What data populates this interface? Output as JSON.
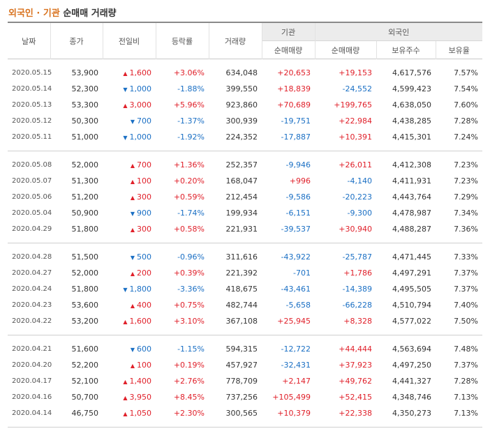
{
  "title": {
    "part1": "외국인",
    "sep": " · ",
    "part2": "기관",
    "rest": " 순매매 거래량"
  },
  "headers": {
    "date": "날짜",
    "close": "종가",
    "change": "전일비",
    "rate": "등락률",
    "volume": "거래량",
    "inst": "기관",
    "foreign": "외국인",
    "inst_net": "순매매량",
    "foreign_net": "순매매량",
    "holdings": "보유주수",
    "ratio": "보유율"
  },
  "rows": [
    {
      "date": "2020.05.15",
      "close": "53,900",
      "dir": "up",
      "change": "1,600",
      "rate": "+3.06%",
      "volume": "634,048",
      "inst": "+20,653",
      "foreign": "+19,153",
      "hold": "4,617,576",
      "ratio": "7.57%"
    },
    {
      "date": "2020.05.14",
      "close": "52,300",
      "dir": "down",
      "change": "1,000",
      "rate": "-1.88%",
      "volume": "399,550",
      "inst": "+18,839",
      "foreign": "-24,552",
      "hold": "4,599,423",
      "ratio": "7.54%"
    },
    {
      "date": "2020.05.13",
      "close": "53,300",
      "dir": "up",
      "change": "3,000",
      "rate": "+5.96%",
      "volume": "923,860",
      "inst": "+70,689",
      "foreign": "+199,765",
      "hold": "4,638,050",
      "ratio": "7.60%"
    },
    {
      "date": "2020.05.12",
      "close": "50,300",
      "dir": "down",
      "change": "700",
      "rate": "-1.37%",
      "volume": "300,939",
      "inst": "-19,751",
      "foreign": "+22,984",
      "hold": "4,438,285",
      "ratio": "7.28%"
    },
    {
      "date": "2020.05.11",
      "close": "51,000",
      "dir": "down",
      "change": "1,000",
      "rate": "-1.92%",
      "volume": "224,352",
      "inst": "-17,887",
      "foreign": "+10,391",
      "hold": "4,415,301",
      "ratio": "7.24%"
    },
    {
      "date": "2020.05.08",
      "close": "52,000",
      "dir": "up",
      "change": "700",
      "rate": "+1.36%",
      "volume": "252,357",
      "inst": "-9,946",
      "foreign": "+26,011",
      "hold": "4,412,308",
      "ratio": "7.23%"
    },
    {
      "date": "2020.05.07",
      "close": "51,300",
      "dir": "up",
      "change": "100",
      "rate": "+0.20%",
      "volume": "168,047",
      "inst": "+996",
      "foreign": "-4,140",
      "hold": "4,411,931",
      "ratio": "7.23%"
    },
    {
      "date": "2020.05.06",
      "close": "51,200",
      "dir": "up",
      "change": "300",
      "rate": "+0.59%",
      "volume": "212,454",
      "inst": "-9,586",
      "foreign": "-20,223",
      "hold": "4,443,764",
      "ratio": "7.29%"
    },
    {
      "date": "2020.05.04",
      "close": "50,900",
      "dir": "down",
      "change": "900",
      "rate": "-1.74%",
      "volume": "199,934",
      "inst": "-6,151",
      "foreign": "-9,300",
      "hold": "4,478,987",
      "ratio": "7.34%"
    },
    {
      "date": "2020.04.29",
      "close": "51,800",
      "dir": "up",
      "change": "300",
      "rate": "+0.58%",
      "volume": "221,931",
      "inst": "-39,537",
      "foreign": "+30,940",
      "hold": "4,488,287",
      "ratio": "7.36%"
    },
    {
      "date": "2020.04.28",
      "close": "51,500",
      "dir": "down",
      "change": "500",
      "rate": "-0.96%",
      "volume": "311,616",
      "inst": "-43,922",
      "foreign": "-25,787",
      "hold": "4,471,445",
      "ratio": "7.33%"
    },
    {
      "date": "2020.04.27",
      "close": "52,000",
      "dir": "up",
      "change": "200",
      "rate": "+0.39%",
      "volume": "221,392",
      "inst": "-701",
      "foreign": "+1,786",
      "hold": "4,497,291",
      "ratio": "7.37%"
    },
    {
      "date": "2020.04.24",
      "close": "51,800",
      "dir": "down",
      "change": "1,800",
      "rate": "-3.36%",
      "volume": "418,675",
      "inst": "-43,461",
      "foreign": "-14,389",
      "hold": "4,495,505",
      "ratio": "7.37%"
    },
    {
      "date": "2020.04.23",
      "close": "53,600",
      "dir": "up",
      "change": "400",
      "rate": "+0.75%",
      "volume": "482,744",
      "inst": "-5,658",
      "foreign": "-66,228",
      "hold": "4,510,794",
      "ratio": "7.40%"
    },
    {
      "date": "2020.04.22",
      "close": "53,200",
      "dir": "up",
      "change": "1,600",
      "rate": "+3.10%",
      "volume": "367,108",
      "inst": "+25,945",
      "foreign": "+8,328",
      "hold": "4,577,022",
      "ratio": "7.50%"
    },
    {
      "date": "2020.04.21",
      "close": "51,600",
      "dir": "down",
      "change": "600",
      "rate": "-1.15%",
      "volume": "594,315",
      "inst": "-12,722",
      "foreign": "+44,444",
      "hold": "4,563,694",
      "ratio": "7.48%"
    },
    {
      "date": "2020.04.20",
      "close": "52,200",
      "dir": "up",
      "change": "100",
      "rate": "+0.19%",
      "volume": "457,927",
      "inst": "-32,431",
      "foreign": "+37,923",
      "hold": "4,497,250",
      "ratio": "7.37%"
    },
    {
      "date": "2020.04.17",
      "close": "52,100",
      "dir": "up",
      "change": "1,400",
      "rate": "+2.76%",
      "volume": "778,709",
      "inst": "+2,147",
      "foreign": "+49,762",
      "hold": "4,441,327",
      "ratio": "7.28%"
    },
    {
      "date": "2020.04.16",
      "close": "50,700",
      "dir": "up",
      "change": "3,950",
      "rate": "+8.45%",
      "volume": "737,256",
      "inst": "+105,499",
      "foreign": "+52,415",
      "hold": "4,348,746",
      "ratio": "7.13%"
    },
    {
      "date": "2020.04.14",
      "close": "46,750",
      "dir": "up",
      "change": "1,050",
      "rate": "+2.30%",
      "volume": "300,565",
      "inst": "+10,379",
      "foreign": "+22,338",
      "hold": "4,350,273",
      "ratio": "7.13%"
    }
  ],
  "colors": {
    "up": "#e0202a",
    "down": "#1a6fc4",
    "accent": "#d9731f"
  },
  "icons": {
    "up": "triangle-up-icon",
    "down": "triangle-down-icon"
  }
}
